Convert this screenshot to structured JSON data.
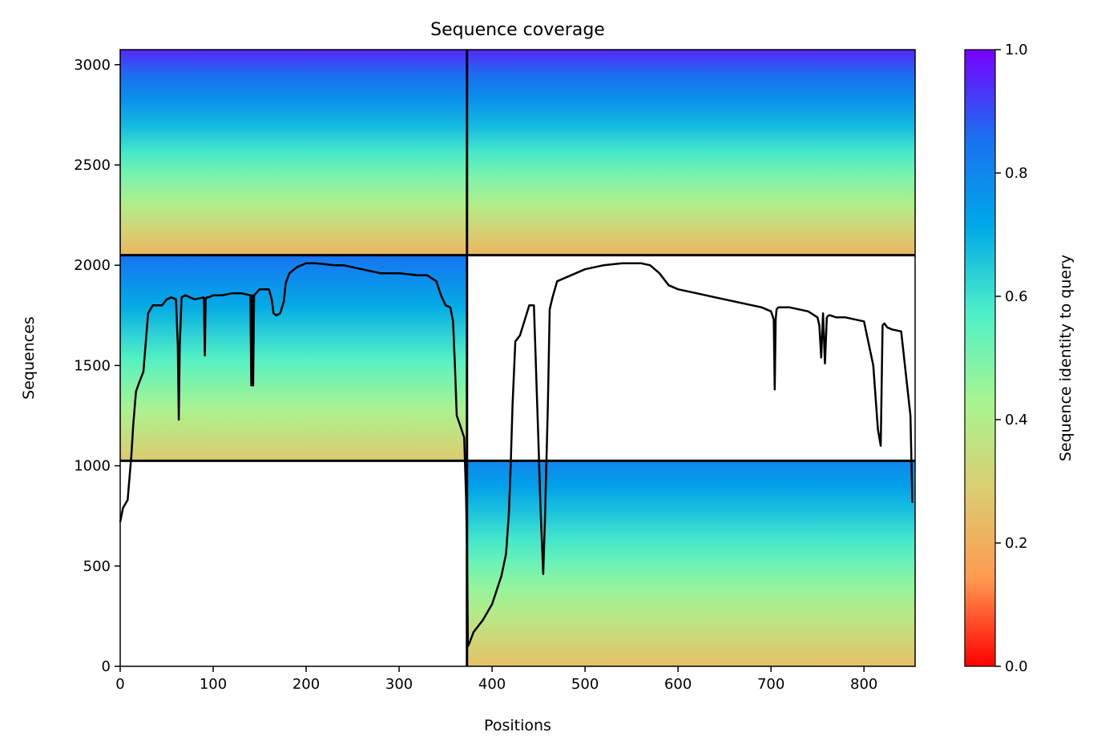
{
  "chart_data": {
    "type": "heatmap",
    "title": "Sequence coverage",
    "xlabel": "Positions",
    "ylabel": "Sequences",
    "xlim": [
      0,
      855
    ],
    "ylim": [
      0,
      3075
    ],
    "xticks": [
      0,
      100,
      200,
      300,
      400,
      500,
      600,
      700,
      800
    ],
    "yticks": [
      0,
      500,
      1000,
      1500,
      2000,
      2500,
      3000
    ],
    "colorbar": {
      "label": "Sequence identity to query",
      "min": 0,
      "max": 1,
      "ticks": [
        "0.0",
        "0.2",
        "0.4",
        "0.6",
        "0.8",
        "1.0"
      ],
      "colormap": "rainbow_r",
      "colors": [
        "#ff0000",
        "#ff9a50",
        "#dccc70",
        "#a8f590",
        "#4ff0c8",
        "#00a8e8",
        "#1a70f0",
        "#7800ff"
      ]
    },
    "segment_boundaries": {
      "x": [
        373
      ],
      "y": [
        1025,
        2050
      ]
    },
    "blocks": [
      {
        "x": [
          0,
          373
        ],
        "y": [
          2050,
          3075
        ],
        "identity_top": 0.95,
        "identity_bottom": 0.22
      },
      {
        "x": [
          373,
          855
        ],
        "y": [
          2050,
          3075
        ],
        "identity_top": 0.95,
        "identity_bottom": 0.22
      },
      {
        "x": [
          0,
          373
        ],
        "y": [
          1025,
          2050
        ],
        "identity_top": 0.85,
        "identity_bottom": 0.28
      },
      {
        "x": [
          373,
          855
        ],
        "y": [
          0,
          1025
        ],
        "identity_top": 0.8,
        "identity_bottom": 0.25
      }
    ],
    "coverage_line": {
      "x": [
        0,
        3,
        8,
        12,
        14,
        17,
        20,
        25,
        30,
        35,
        40,
        45,
        50,
        55,
        60,
        62,
        63,
        64,
        66,
        70,
        80,
        90,
        91,
        92,
        93,
        95,
        100,
        110,
        120,
        130,
        140,
        141,
        142,
        143,
        144,
        146,
        150,
        160,
        163,
        165,
        168,
        172,
        176,
        178,
        182,
        190,
        200,
        210,
        220,
        230,
        240,
        260,
        280,
        300,
        320,
        330,
        340,
        345,
        350,
        355,
        358,
        360,
        362,
        365,
        370,
        372,
        373,
        374,
        376,
        380,
        390,
        400,
        410,
        415,
        418,
        420,
        422,
        425,
        430,
        440,
        445,
        450,
        452,
        455,
        457,
        460,
        462,
        465,
        470,
        480,
        490,
        500,
        520,
        540,
        560,
        570,
        580,
        590,
        600,
        620,
        640,
        660,
        680,
        690,
        700,
        703,
        704,
        705,
        706,
        708,
        720,
        730,
        740,
        750,
        752,
        754,
        756,
        758,
        760,
        762,
        764,
        770,
        780,
        800,
        810,
        815,
        818,
        820,
        822,
        825,
        830,
        840,
        850,
        852,
        853,
        854,
        855
      ],
      "y": [
        720,
        790,
        830,
        1050,
        1200,
        1370,
        1410,
        1470,
        1760,
        1800,
        1800,
        1800,
        1830,
        1840,
        1830,
        1600,
        1230,
        1600,
        1840,
        1850,
        1830,
        1840,
        1550,
        1830,
        1840,
        1840,
        1850,
        1850,
        1860,
        1860,
        1850,
        1400,
        1850,
        1400,
        1850,
        1860,
        1880,
        1880,
        1830,
        1760,
        1750,
        1760,
        1820,
        1910,
        1960,
        1990,
        2010,
        2010,
        2005,
        2000,
        2000,
        1980,
        1960,
        1960,
        1950,
        1950,
        1920,
        1850,
        1800,
        1790,
        1720,
        1500,
        1250,
        1210,
        1140,
        850,
        600,
        100,
        120,
        170,
        230,
        310,
        450,
        560,
        760,
        1000,
        1300,
        1620,
        1650,
        1800,
        1800,
        1100,
        800,
        460,
        750,
        1300,
        1780,
        1840,
        1920,
        1940,
        1960,
        1980,
        2000,
        2010,
        2010,
        2000,
        1960,
        1900,
        1880,
        1860,
        1840,
        1820,
        1800,
        1790,
        1770,
        1730,
        1380,
        1730,
        1780,
        1790,
        1790,
        1780,
        1770,
        1740,
        1700,
        1540,
        1760,
        1510,
        1740,
        1750,
        1750,
        1740,
        1740,
        1720,
        1500,
        1180,
        1100,
        1700,
        1710,
        1690,
        1680,
        1670,
        1250,
        820,
        820
      ]
    }
  }
}
